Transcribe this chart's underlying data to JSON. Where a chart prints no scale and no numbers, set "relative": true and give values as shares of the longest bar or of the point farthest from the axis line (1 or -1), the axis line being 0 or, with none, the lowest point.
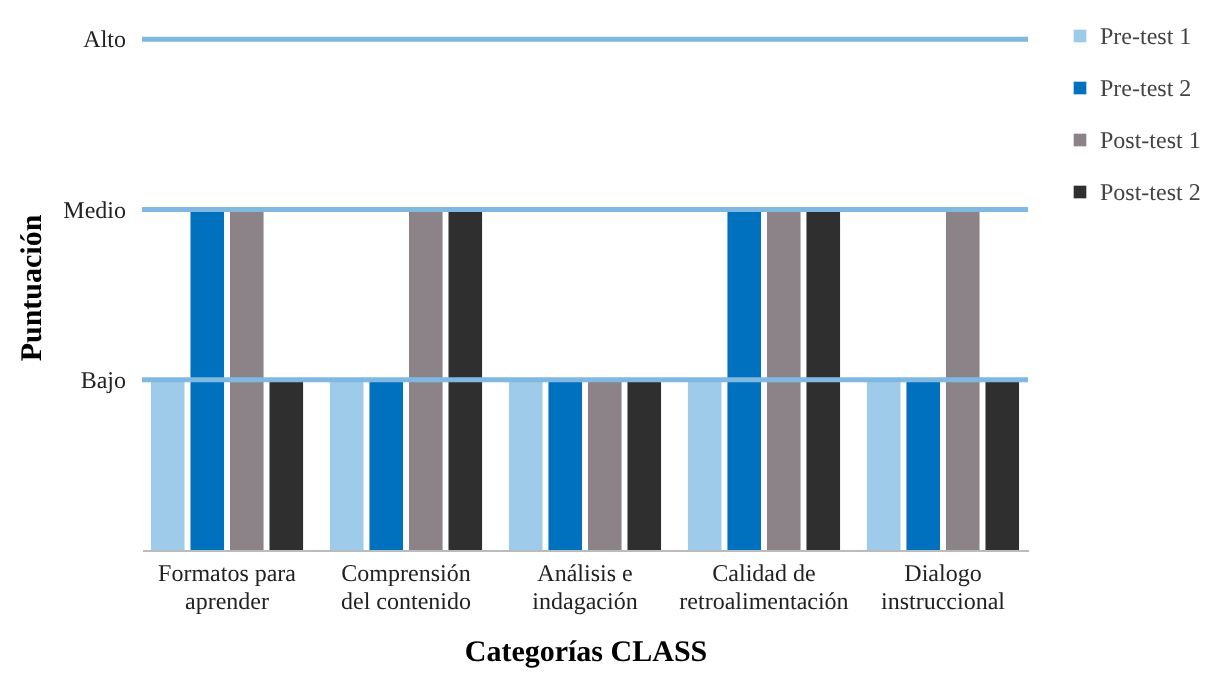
{
  "chart_data": {
    "type": "bar",
    "xlabel": "Categorías CLASS",
    "ylabel": "Puntuación",
    "relative": true,
    "categories": [
      "Formatos para\naprender",
      "Comprensión\ndel contenido",
      "Análisis e\nindagación",
      "Calidad de\nretroalimentación",
      "Dialogo\ninstruccional"
    ],
    "series": [
      {
        "name": "Pre-test 1",
        "color": "#9dcbe9",
        "values": [
          0.5,
          0.5,
          0.5,
          0.5,
          0.5
        ]
      },
      {
        "name": "Pre-test 2",
        "color": "#0071bf",
        "values": [
          1,
          0.5,
          0.5,
          1,
          0.5
        ]
      },
      {
        "name": "Post-test 1",
        "color": "#8b8387",
        "values": [
          1,
          1,
          0.5,
          1,
          1
        ]
      },
      {
        "name": "Post-test 2",
        "color": "#2f2f2f",
        "values": [
          0.5,
          1,
          0.5,
          1,
          0.5
        ]
      }
    ],
    "ref_lines": [
      {
        "axis": "y",
        "value": 0.5,
        "label": "Bajo",
        "color": "#7fb8e0"
      },
      {
        "axis": "y",
        "value": 1,
        "label": "Medio",
        "color": "#7fb8e0"
      },
      {
        "axis": "y",
        "value": 1.5,
        "label": "Alto",
        "color": "#7fb8e0"
      }
    ],
    "legend": "right"
  }
}
